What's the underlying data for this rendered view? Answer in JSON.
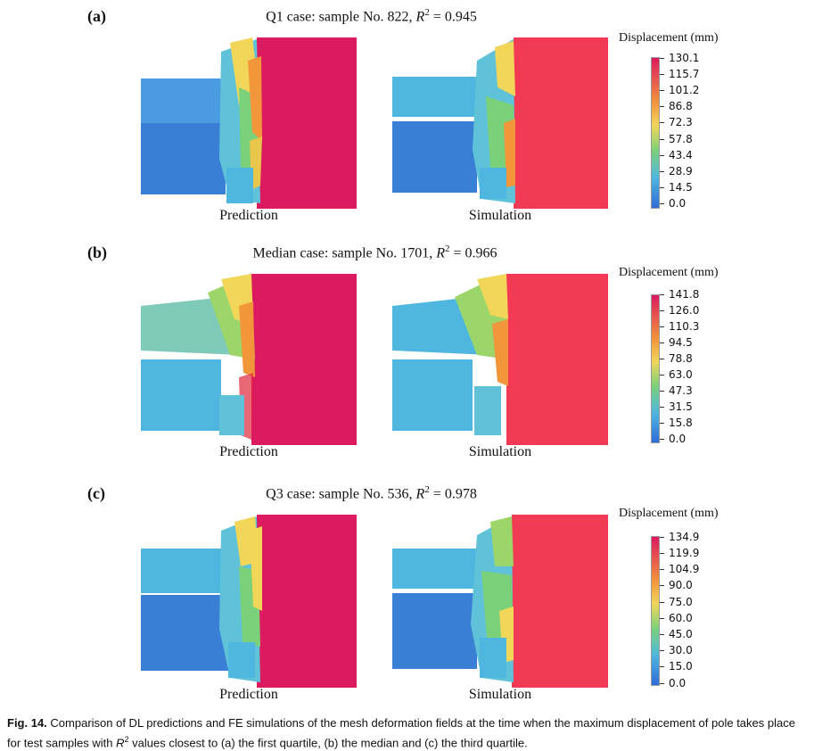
{
  "colors": {
    "pole": "#dc1a5f",
    "pole_sim": "#f23a55",
    "blue": "#3a7fd6",
    "cyan": "#4fb7df",
    "green": "#7bd17a",
    "yellow": "#f2d65a",
    "orange": "#f2963c",
    "red": "#e0283e"
  },
  "panels": [
    {
      "label": "(a)",
      "title": "Q1 case: sample No. 822, ",
      "r2_symbol": "R",
      "r2_sup": "2",
      "r2_value": " = 0.945",
      "left_label": "Prediction",
      "right_label": "Simulation",
      "colorbar_title": "Displacement (mm)",
      "ticks": [
        "130.1",
        "115.7",
        "101.2",
        "86.8",
        "72.3",
        "57.8",
        "43.4",
        "28.9",
        "14.5",
        "0.0"
      ]
    },
    {
      "label": "(b)",
      "title": "Median case: sample No. 1701, ",
      "r2_symbol": "R",
      "r2_sup": "2",
      "r2_value": " = 0.966",
      "left_label": "Prediction",
      "right_label": "Simulation",
      "colorbar_title": "Displacement (mm)",
      "ticks": [
        "141.8",
        "126.0",
        "110.3",
        "94.5",
        "78.8",
        "63.0",
        "47.3",
        "31.5",
        "15.8",
        "0.0"
      ]
    },
    {
      "label": "(c)",
      "title": "Q3 case: sample No. 536, ",
      "r2_symbol": "R",
      "r2_sup": "2",
      "r2_value": " = 0.978",
      "left_label": "Prediction",
      "right_label": "Simulation",
      "colorbar_title": "Displacement (mm)",
      "ticks": [
        "134.9",
        "119.9",
        "104.9",
        "90.0",
        "75.0",
        "60.0",
        "45.0",
        "30.0",
        "15.0",
        "0.0"
      ]
    }
  ],
  "caption": {
    "figno": "Fig. 14.",
    "part1": " Comparison of DL predictions and FE simulations of the mesh deformation fields at the time when the maximum displacement of pole takes place for test samples with ",
    "r2_symbol": "R",
    "r2_sup": "2",
    "part2": " values closest to (a) the first quartile, (b) the median and (c) the third quartile."
  }
}
